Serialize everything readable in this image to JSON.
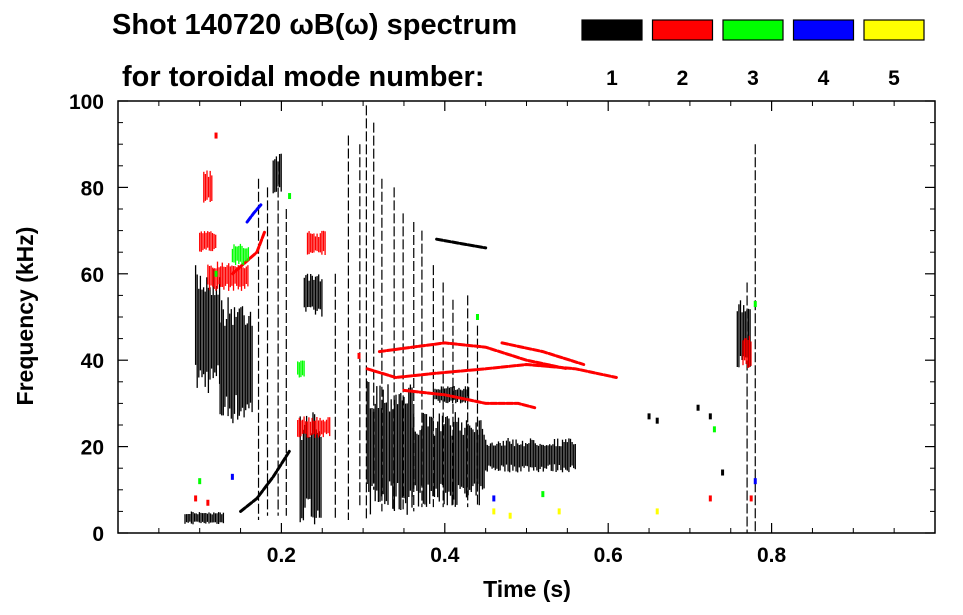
{
  "header": {
    "title": "Shot 140720 ωB(ω) spectrum",
    "subtitle": "for toroidal mode number:"
  },
  "legend": [
    {
      "label": "1",
      "color": "#000000"
    },
    {
      "label": "2",
      "color": "#ff0000"
    },
    {
      "label": "3",
      "color": "#00ff00"
    },
    {
      "label": "4",
      "color": "#0000ff"
    },
    {
      "label": "5",
      "color": "#ffff00"
    }
  ],
  "chart_data": {
    "type": "heatmap",
    "title": "Shot 140720 ωB(ω) spectrum",
    "xlabel": "Time (s)",
    "ylabel": "Frequency (kHz)",
    "xlim": [
      0.0,
      1.0
    ],
    "ylim": [
      0,
      100
    ],
    "xticks": [
      {
        "value": 0.2,
        "label": "0.2"
      },
      {
        "value": 0.4,
        "label": "0.4"
      },
      {
        "value": 0.6,
        "label": "0.6"
      },
      {
        "value": 0.8,
        "label": "0.8"
      }
    ],
    "yticks": [
      {
        "value": 0,
        "label": "0"
      },
      {
        "value": 20,
        "label": "20"
      },
      {
        "value": 40,
        "label": "40"
      },
      {
        "value": 60,
        "label": "60"
      },
      {
        "value": 80,
        "label": "80"
      },
      {
        "value": 100,
        "label": "100"
      }
    ],
    "grid": false,
    "legend_position": "top-right",
    "series": [
      {
        "name": "1",
        "color": "#000000",
        "regions": [
          {
            "t": [
              0.095,
              0.125
            ],
            "f": [
              32,
              62
            ]
          },
          {
            "t": [
              0.125,
              0.165
            ],
            "f": [
              25,
              55
            ]
          },
          {
            "t": [
              0.19,
              0.2
            ],
            "f": [
              78,
              88
            ]
          },
          {
            "t": [
              0.223,
              0.25
            ],
            "f": [
              2,
              28
            ]
          },
          {
            "t": [
              0.228,
              0.25
            ],
            "f": [
              50,
              60
            ]
          },
          {
            "t": [
              0.305,
              0.36
            ],
            "f": [
              4,
              36
            ]
          },
          {
            "t": [
              0.36,
              0.45
            ],
            "f": [
              6,
              28
            ]
          },
          {
            "t": [
              0.45,
              0.56
            ],
            "f": [
              14,
              22
            ]
          },
          {
            "t": [
              0.388,
              0.43
            ],
            "f": [
              30,
              34
            ]
          },
          {
            "t": [
              0.758,
              0.775
            ],
            "f": [
              37,
              55
            ]
          },
          {
            "t": [
              0.082,
              0.13
            ],
            "f": [
              2,
              5
            ]
          }
        ],
        "curves": [
          {
            "t": [
              0.15,
              0.17,
              0.19,
              0.2,
              0.21
            ],
            "f": [
              5,
              8,
              13,
              16,
              19
            ]
          },
          {
            "t": [
              0.39,
              0.42,
              0.45
            ],
            "f": [
              68,
              67,
              66
            ]
          }
        ],
        "vlines": [
          {
            "t": 0.172,
            "f": [
              3,
              82
            ]
          },
          {
            "t": 0.183,
            "f": [
              4,
              80
            ]
          },
          {
            "t": 0.196,
            "f": [
              4,
              86
            ]
          },
          {
            "t": 0.206,
            "f": [
              4,
              75
            ]
          },
          {
            "t": 0.266,
            "f": [
              3,
              60
            ]
          },
          {
            "t": 0.282,
            "f": [
              3,
              92
            ]
          },
          {
            "t": 0.296,
            "f": [
              6,
              90
            ]
          },
          {
            "t": 0.304,
            "f": [
              3,
              99
            ]
          },
          {
            "t": 0.313,
            "f": [
              10,
              95
            ]
          },
          {
            "t": 0.323,
            "f": [
              5,
              82
            ]
          },
          {
            "t": 0.338,
            "f": [
              5,
              80
            ]
          },
          {
            "t": 0.349,
            "f": [
              5,
              74
            ]
          },
          {
            "t": 0.362,
            "f": [
              5,
              72
            ]
          },
          {
            "t": 0.372,
            "f": [
              6,
              70
            ]
          },
          {
            "t": 0.386,
            "f": [
              6,
              62
            ]
          },
          {
            "t": 0.398,
            "f": [
              6,
              58
            ]
          },
          {
            "t": 0.41,
            "f": [
              6,
              54
            ]
          },
          {
            "t": 0.428,
            "f": [
              6,
              55
            ]
          },
          {
            "t": 0.44,
            "f": [
              6,
              48
            ]
          },
          {
            "t": 0.77,
            "f": [
              0,
              58
            ]
          },
          {
            "t": 0.78,
            "f": [
              0,
              90
            ]
          }
        ],
        "dots": [
          {
            "t": 0.65,
            "f": 27
          },
          {
            "t": 0.66,
            "f": 26
          },
          {
            "t": 0.71,
            "f": 29
          },
          {
            "t": 0.725,
            "f": 27
          },
          {
            "t": 0.74,
            "f": 14
          }
        ]
      },
      {
        "name": "2",
        "color": "#ff0000",
        "regions": [
          {
            "t": [
              0.1,
              0.12
            ],
            "f": [
              65,
              70
            ]
          },
          {
            "t": [
              0.11,
              0.16
            ],
            "f": [
              56,
              63
            ]
          },
          {
            "t": [
              0.105,
              0.115
            ],
            "f": [
              76,
              84
            ]
          },
          {
            "t": [
              0.232,
              0.255
            ],
            "f": [
              64,
              70
            ]
          },
          {
            "t": [
              0.22,
              0.26
            ],
            "f": [
              22,
              27
            ]
          },
          {
            "t": [
              0.765,
              0.775
            ],
            "f": [
              38,
              46
            ]
          }
        ],
        "curves": [
          {
            "t": [
              0.305,
              0.34,
              0.39,
              0.45,
              0.5,
              0.56,
              0.61
            ],
            "f": [
              38,
              36,
              37,
              38,
              39,
              38,
              36
            ]
          },
          {
            "t": [
              0.32,
              0.36,
              0.4,
              0.45,
              0.5,
              0.55
            ],
            "f": [
              42,
              43,
              44,
              43,
              40,
              38
            ]
          },
          {
            "t": [
              0.47,
              0.52,
              0.57
            ],
            "f": [
              44,
              42,
              39
            ]
          },
          {
            "t": [
              0.35,
              0.4,
              0.45,
              0.49,
              0.51
            ],
            "f": [
              33,
              32,
              30,
              30,
              29
            ]
          },
          {
            "t": [
              0.14,
              0.17,
              0.18
            ],
            "f": [
              60,
              65,
              70
            ]
          }
        ],
        "dots": [
          {
            "t": 0.12,
            "f": 92
          },
          {
            "t": 0.095,
            "f": 8
          },
          {
            "t": 0.11,
            "f": 7
          },
          {
            "t": 0.295,
            "f": 41
          },
          {
            "t": 0.775,
            "f": 8
          },
          {
            "t": 0.725,
            "f": 8
          }
        ]
      },
      {
        "name": "3",
        "color": "#00ff00",
        "regions": [
          {
            "t": [
              0.14,
              0.16
            ],
            "f": [
              62,
              67
            ]
          },
          {
            "t": [
              0.22,
              0.228
            ],
            "f": [
              36,
              40
            ]
          }
        ],
        "dots": [
          {
            "t": 0.12,
            "f": 60
          },
          {
            "t": 0.21,
            "f": 78
          },
          {
            "t": 0.44,
            "f": 50
          },
          {
            "t": 0.1,
            "f": 12
          },
          {
            "t": 0.52,
            "f": 9
          },
          {
            "t": 0.78,
            "f": 53
          },
          {
            "t": 0.73,
            "f": 24
          }
        ]
      },
      {
        "name": "4",
        "color": "#0000ff",
        "curves": [
          {
            "t": [
              0.158,
              0.166,
              0.175
            ],
            "f": [
              72,
              74,
              76
            ]
          }
        ],
        "dots": [
          {
            "t": 0.14,
            "f": 13
          },
          {
            "t": 0.46,
            "f": 8
          },
          {
            "t": 0.78,
            "f": 12
          }
        ]
      },
      {
        "name": "5",
        "color": "#ffff00",
        "dots": [
          {
            "t": 0.46,
            "f": 5
          },
          {
            "t": 0.48,
            "f": 4
          },
          {
            "t": 0.54,
            "f": 5
          },
          {
            "t": 0.66,
            "f": 5
          }
        ]
      }
    ]
  }
}
